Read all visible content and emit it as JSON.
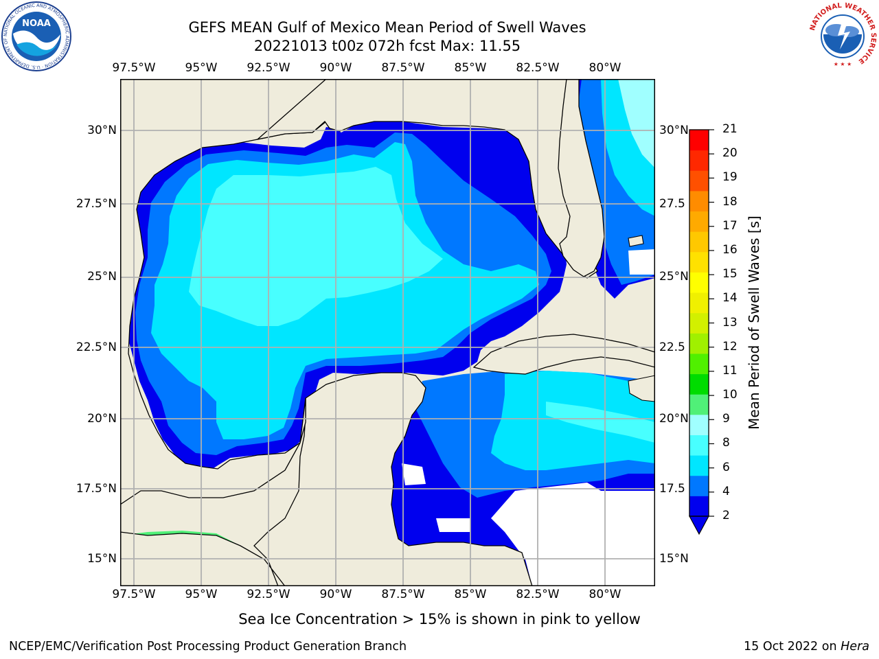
{
  "header": {
    "title_line1": "GEFS MEAN Gulf of Mexico Mean Period of Swell Waves",
    "title_line2": "20221013 t00z 072h fcst   Max: 11.55"
  },
  "logos": {
    "noaa_text": "NOAA",
    "noaa_ring_text": "NATIONAL OCEANIC AND ATMOSPHERIC ADMINISTRATION · U.S. DEPARTMENT OF COMMERCE",
    "nws_ring_text": "NATIONAL WEATHER SERVICE"
  },
  "map": {
    "lon_ticks": [
      "97.5°W",
      "95°W",
      "92.5°W",
      "90°W",
      "87.5°W",
      "85°W",
      "82.5°W",
      "80°W"
    ],
    "lat_ticks_left": [
      "30°N",
      "27.5°N",
      "25°N",
      "22.5°N",
      "20°N",
      "17.5°N",
      "15°N"
    ],
    "lat_ticks_right": [
      "30°N",
      "27.5",
      "25°N",
      "22.5",
      "20°N",
      "17.5",
      "15°N"
    ],
    "land_color": "#efecdc",
    "grid_color": "#b0b0b0"
  },
  "colorbar": {
    "label": "Mean Period of Swell Waves [s]",
    "ticks": [
      "21",
      "20",
      "19",
      "18",
      "17",
      "16",
      "15",
      "14",
      "13",
      "12",
      "11",
      "10",
      "9",
      "8",
      "6",
      "4",
      "2"
    ],
    "colors": [
      "#0000ee",
      "#0078ff",
      "#00e6ff",
      "#48ffff",
      "#a0ffff",
      "#50f078",
      "#00dc00",
      "#50f000",
      "#a0f000",
      "#d2f000",
      "#f0f000",
      "#ffff00",
      "#ffe100",
      "#ffc800",
      "#ffaa00",
      "#ff8c00",
      "#ff5000",
      "#ff2800",
      "#ff0000"
    ]
  },
  "footer": {
    "note": "Sea Ice Concentration > 15% is shown in pink to yellow",
    "org": "NCEP/EMC/Verification Post Processing Product Generation Branch",
    "date": "15 Oct 2022 on",
    "machine": "Hera"
  }
}
